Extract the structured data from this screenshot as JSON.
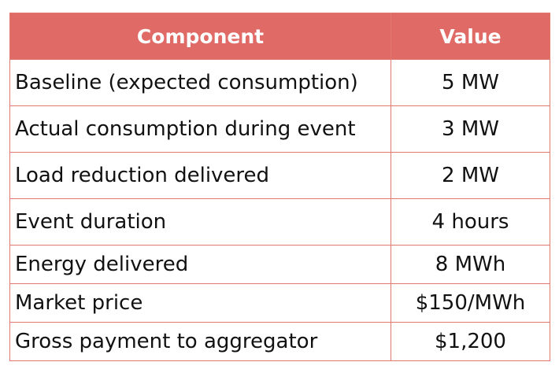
{
  "table": {
    "headers": {
      "component": "Component",
      "value": "Value"
    },
    "rows": [
      {
        "component": "Baseline (expected consumption)",
        "value": "5 MW"
      },
      {
        "component": "Actual consumption during event",
        "value": "3 MW"
      },
      {
        "component": "Load reduction delivered",
        "value": "2 MW"
      },
      {
        "component": "Event duration",
        "value": "4 hours"
      },
      {
        "component": "Energy delivered",
        "value": "8 MWh"
      },
      {
        "component": "Market price",
        "value": "$150/MWh"
      },
      {
        "component": "Gross payment to aggregator",
        "value": "$1,200"
      }
    ],
    "header_color": "#e06a66",
    "border_color": "#e07870"
  }
}
